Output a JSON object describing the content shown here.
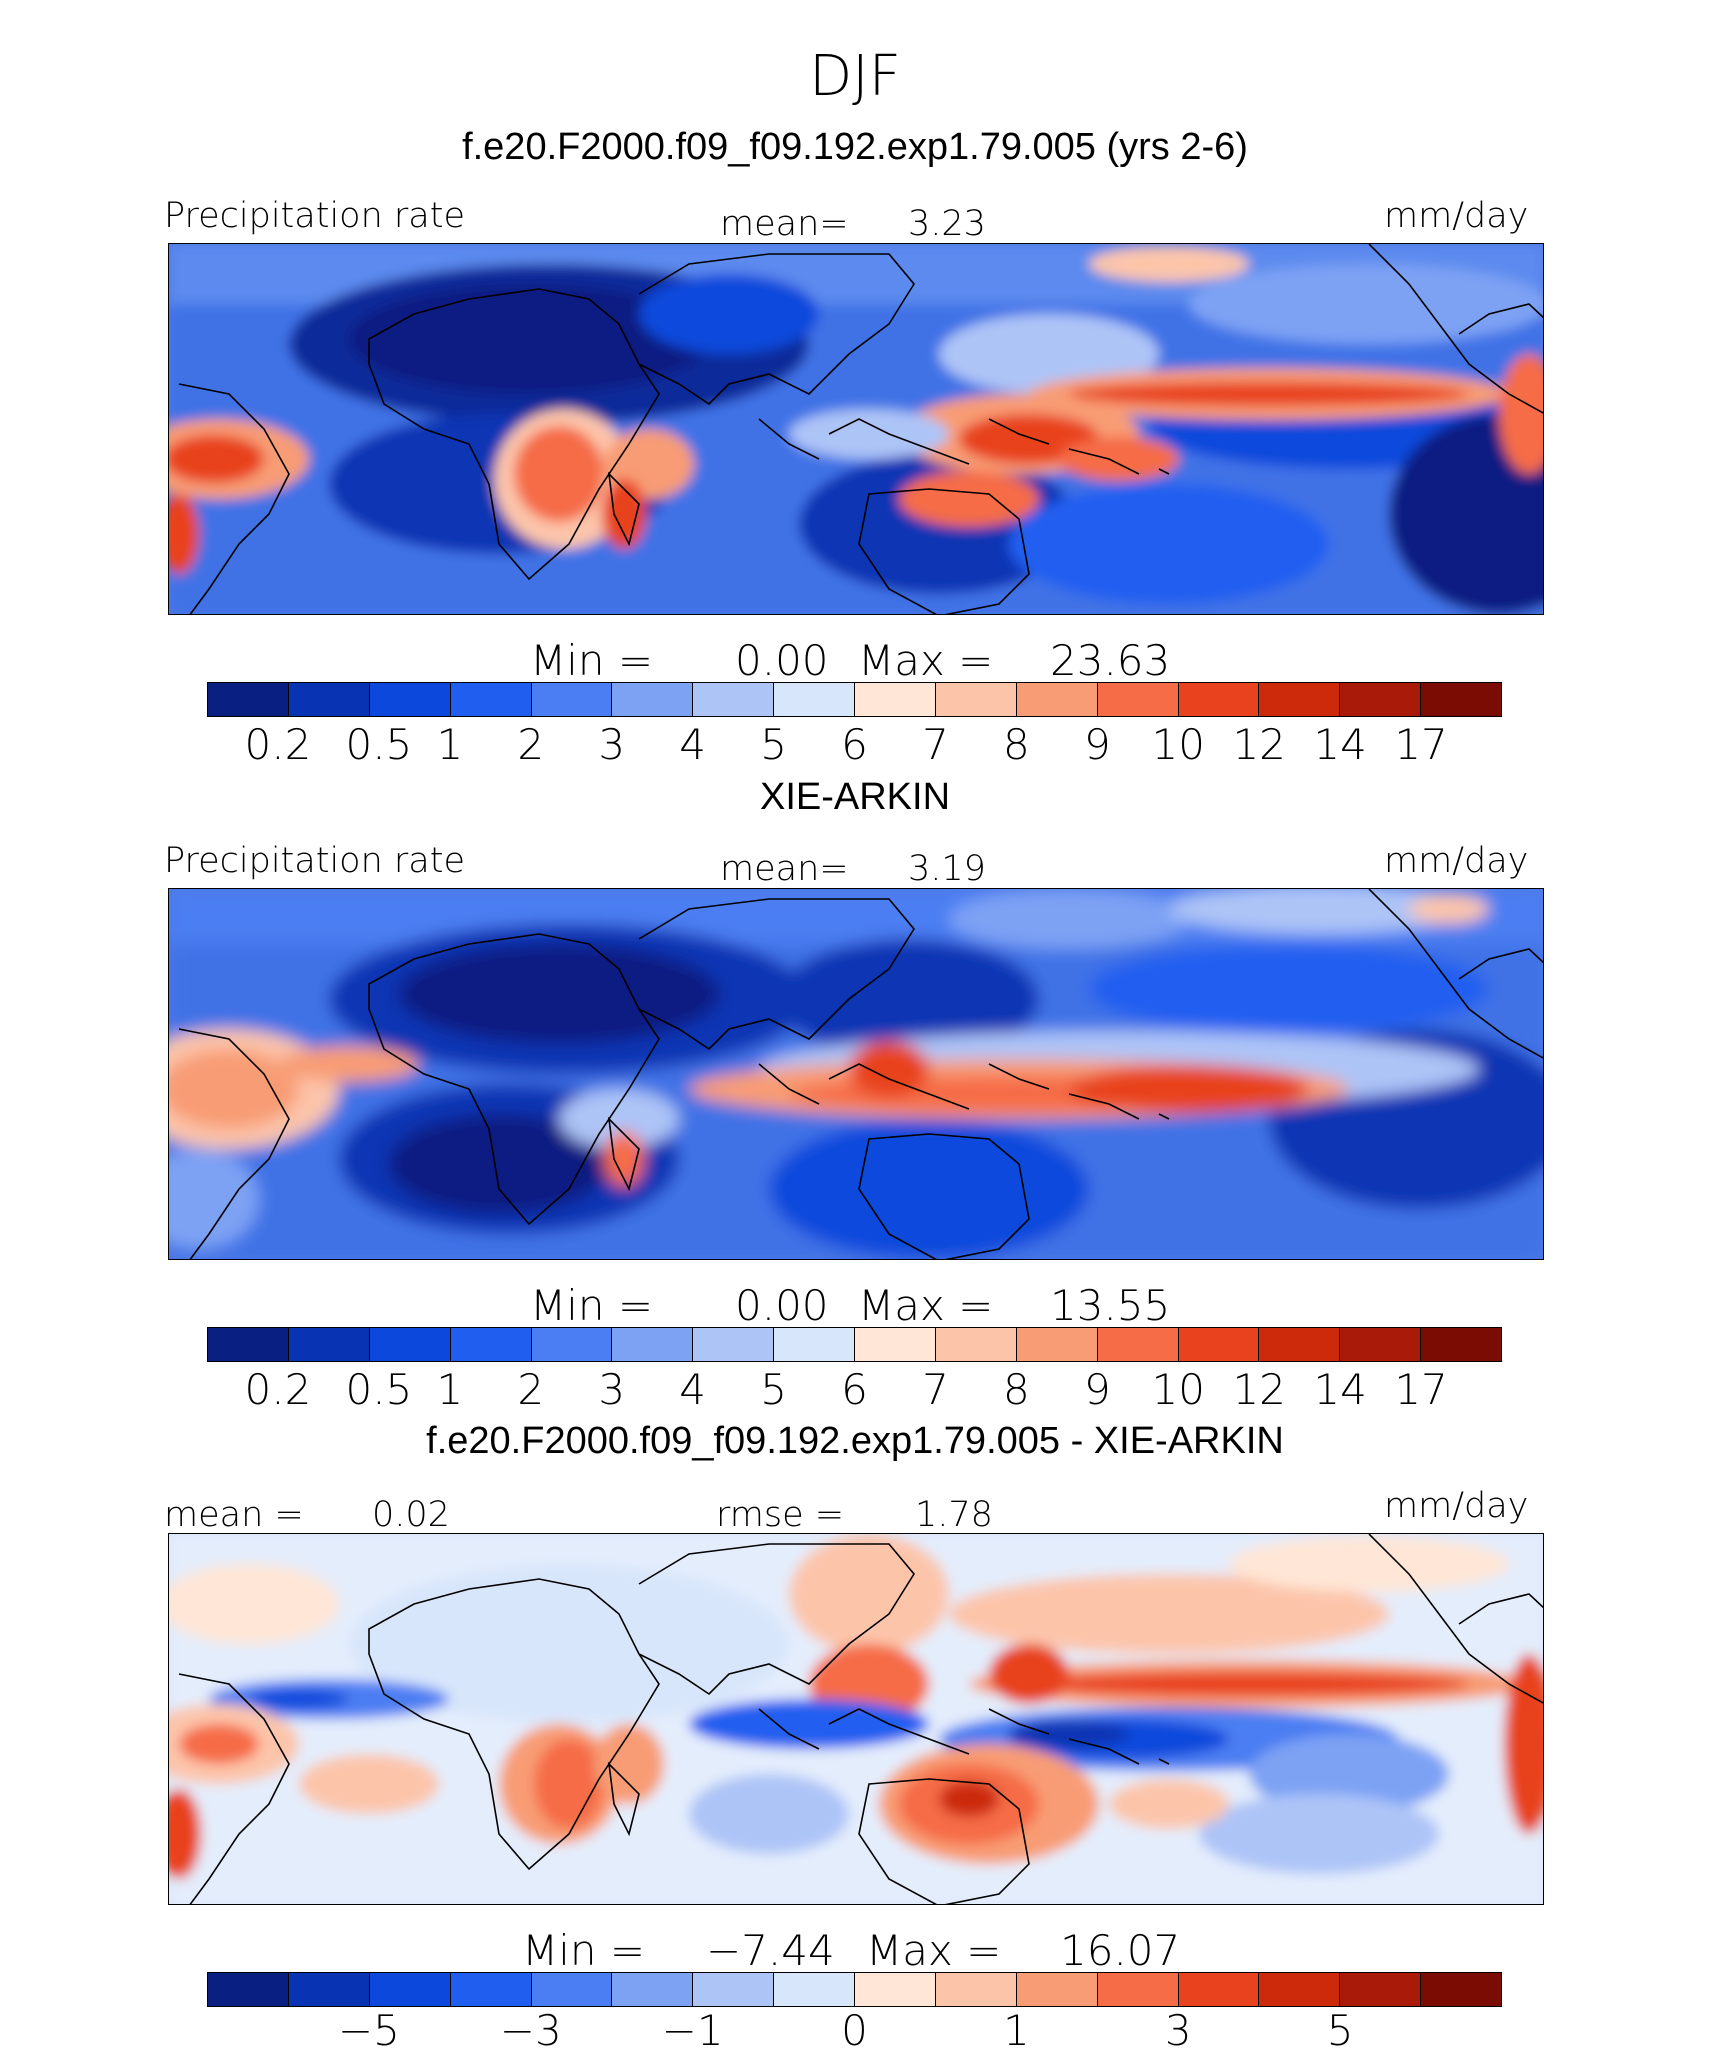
{
  "figure": {
    "title": "DJF"
  },
  "colors": [
    "#0a1f82",
    "#0834b4",
    "#0c48dc",
    "#205ef0",
    "#4b7ef2",
    "#7da2f4",
    "#adc4f7",
    "#d8e6fb",
    "#ffe6d6",
    "#fcc5aa",
    "#f89c75",
    "#f56c47",
    "#e8421e",
    "#cc2a0b",
    "#a91b08",
    "#7a0c04"
  ],
  "chart_data": [
    {
      "type": "heatmap",
      "title": "f.e20.F2000.f09_f09.192.exp1.79.005 (yrs 2-6)",
      "variable": "Precipitation rate",
      "units": "mm/day",
      "stats_label": "mean=",
      "stats_value": "3.23",
      "min_label": "Min  =",
      "min": "0.00",
      "max_label": "Max  =",
      "max": "23.63",
      "levels": [
        "0.2",
        "0.5",
        "1",
        "2",
        "3",
        "4",
        "5",
        "6",
        "7",
        "8",
        "9",
        "10",
        "12",
        "14",
        "17"
      ]
    },
    {
      "type": "heatmap",
      "title": "XIE-ARKIN",
      "variable": "Precipitation rate",
      "units": "mm/day",
      "stats_label": "mean=",
      "stats_value": "3.19",
      "min_label": "Min  =",
      "min": "0.00",
      "max_label": "Max  =",
      "max": "13.55",
      "levels": [
        "0.2",
        "0.5",
        "1",
        "2",
        "3",
        "4",
        "5",
        "6",
        "7",
        "8",
        "9",
        "10",
        "12",
        "14",
        "17"
      ]
    },
    {
      "type": "heatmap",
      "title": "f.e20.F2000.f09_f09.192.exp1.79.005 - XIE-ARKIN",
      "units": "mm/day",
      "stats_label": "mean =",
      "stats_value": "0.02",
      "rmse_label": "rmse =",
      "rmse_value": "1.78",
      "min_label": "Min  =",
      "min": "−7.44",
      "max_label": "Max  =",
      "max": "16.07",
      "levels": [
        "−5",
        "−3",
        "−1",
        "0",
        "1",
        "3",
        "5"
      ]
    }
  ]
}
